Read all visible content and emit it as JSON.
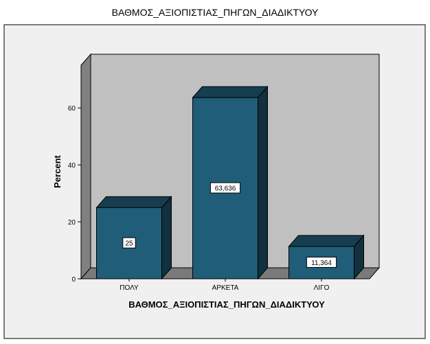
{
  "chart_data": {
    "type": "bar",
    "title": "ΒΑΘΜΟΣ_ΑΞΙΟΠΙΣΤΙΑΣ_ΠΗΓΩΝ_ΔΙΑΔΙΚΤΥΟΥ",
    "xlabel": "ΒΑΘΜΟΣ_ΑΞΙΟΠΙΣΤΙΑΣ_ΠΗΓΩΝ_ΔΙΑΔΙΚΤΥΟΥ",
    "ylabel": "Percent",
    "categories": [
      "ΠΟΛΥ",
      "ΑΡΚΕΤΑ",
      "ΛΙΓΟ"
    ],
    "values": [
      25,
      63.636,
      11.364
    ],
    "data_labels": [
      "25",
      "63,636",
      "11,364"
    ],
    "yticks": [
      0,
      20,
      40,
      60
    ],
    "ylim": [
      0,
      75
    ],
    "grid": false,
    "colors": {
      "bar_front": "#1f5d78",
      "bar_top": "#173e50",
      "bar_side": "#12303e",
      "plot_back": "#c0c0c0",
      "plot_wall": "#808080",
      "plot_floor": "#7a7a7a",
      "outer_bg": "#f0f0f0"
    }
  }
}
